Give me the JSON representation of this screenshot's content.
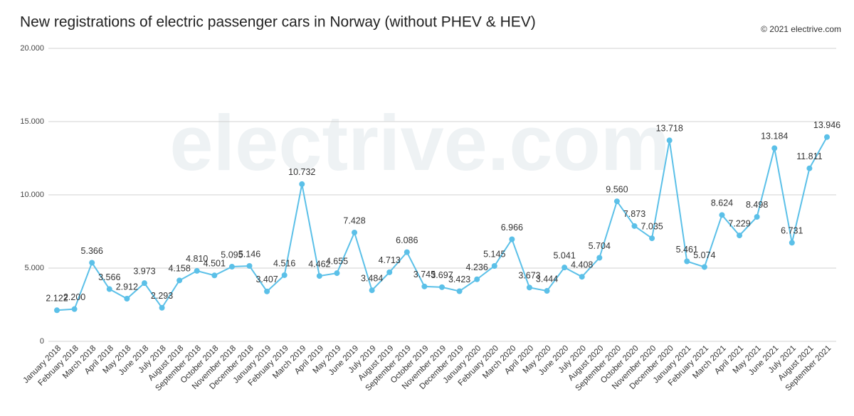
{
  "chart_data": {
    "type": "line",
    "title": "New registrations of electric passenger cars in Norway (without PHEV & HEV)",
    "source": "© 2021 electrive.com",
    "watermark": "electrive.com",
    "categories": [
      "January 2018",
      "February 2018",
      "March 2018",
      "April 2018",
      "May 2018",
      "June 2018",
      "July 2018",
      "August 2018",
      "September 2018",
      "October 2018",
      "November 2018",
      "December 2018",
      "January 2019",
      "February 2019",
      "March 2019",
      "April 2019",
      "May 2019",
      "June 2019",
      "July 2019",
      "August 2019",
      "September 2019",
      "October 2019",
      "November 2019",
      "December 2019",
      "January 2020",
      "February 2020",
      "March 2020",
      "April 2020",
      "May 2020",
      "June 2020",
      "July 2020",
      "August 2020",
      "September 2020",
      "October 2020",
      "November 2020",
      "December 2020",
      "January 2021",
      "February 2021",
      "March 2021",
      "April 2021",
      "May 2021",
      "June 2021",
      "July 2021",
      "August 2021",
      "September 2021"
    ],
    "values": [
      2122,
      2200,
      5366,
      3566,
      2912,
      3973,
      2293,
      4158,
      4810,
      4501,
      5095,
      5146,
      3407,
      4516,
      10732,
      4462,
      4655,
      7428,
      3484,
      4713,
      6086,
      3745,
      3697,
      3423,
      4236,
      5145,
      6966,
      3673,
      3444,
      5041,
      4408,
      5704,
      9560,
      7873,
      7035,
      13718,
      5461,
      5074,
      8624,
      7229,
      8498,
      13184,
      6731,
      11811,
      13946
    ],
    "value_labels": [
      "2.122",
      "2.200",
      "5.366",
      "3.566",
      "2.912",
      "3.973",
      "2.293",
      "4.158",
      "4.810",
      "4.501",
      "5.095",
      "5.146",
      "3.407",
      "4.516",
      "10.732",
      "4.462",
      "4.655",
      "7.428",
      "3.484",
      "4.713",
      "6.086",
      "3.745",
      "3.697",
      "3.423",
      "4.236",
      "5.145",
      "6.966",
      "3.673",
      "3.444",
      "5.041",
      "4.408",
      "5.704",
      "9.560",
      "7.873",
      "7.035",
      "13.718",
      "5.461",
      "5.074",
      "8.624",
      "7.229",
      "8.498",
      "13.184",
      "6.731",
      "11.811",
      "13.946"
    ],
    "color": "#5bc0e8",
    "ylim": [
      0,
      20000
    ],
    "yticks": [
      0,
      {
        "value": 5000,
        "label": "5.000"
      },
      {
        "value": 10000,
        "label": "10.000"
      },
      {
        "value": 15000,
        "label": "15.000"
      },
      {
        "value": 20000,
        "label": "20.000"
      }
    ],
    "grid": true
  }
}
